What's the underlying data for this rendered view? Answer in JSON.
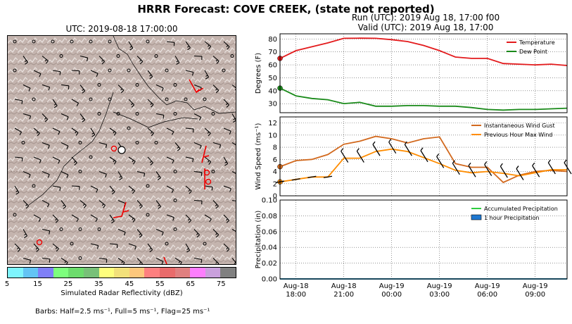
{
  "figure": {
    "title": "HRRR Forecast: COVE CREEK, (state not reported)",
    "run": "Run (UTC): 2019 Aug 18, 17:00 f00",
    "valid": "Valid (UTC): 2019 Aug 18, 17:00"
  },
  "map": {
    "title": "UTC: 2019-08-18 17:00:00",
    "colorbar_label": "Simulated Radar Reflectivity (dBZ)",
    "colorbar_ticks": [
      "5",
      "15",
      "25",
      "35",
      "45",
      "55",
      "65",
      "75"
    ],
    "colorbar_colors": [
      "#7ef4fd",
      "#63c4f4",
      "#7f7ff7",
      "#7dfe7d",
      "#6cdc6c",
      "#78c078",
      "#fefe7d",
      "#f2e07a",
      "#fdc77c",
      "#fd7f7f",
      "#e96b6b",
      "#e08080",
      "#fd7efd",
      "#c9a0dc",
      "#808080"
    ],
    "barbs_note": "Barbs: Half=2.5 ms⁻¹, Full=5 ms⁻¹, Flag=25 ms⁻¹",
    "terrain_color": "#c2b2ac"
  },
  "chart_data": [
    {
      "type": "line",
      "ylabel": "Degrees (F)",
      "ylim": [
        23,
        84
      ],
      "yticks": [
        30,
        40,
        50,
        60,
        70,
        80
      ],
      "grid": true,
      "legend_position": "top-right",
      "x_hours": [
        0,
        1,
        2,
        3,
        4,
        5,
        6,
        7,
        8,
        9,
        10,
        11,
        12,
        13,
        14,
        15,
        16,
        17,
        18
      ],
      "series": [
        {
          "name": "Temperature",
          "color": "#e31a1c",
          "values": [
            65,
            71,
            74,
            77,
            80.5,
            80.6,
            80.5,
            79.5,
            78,
            75,
            71,
            66,
            65,
            65,
            61,
            60.5,
            60,
            60.5,
            59.5
          ]
        },
        {
          "name": "Dew Point",
          "color": "#1a8a1a",
          "values": [
            42,
            36,
            34,
            33,
            30,
            31,
            28,
            28,
            28.5,
            28.5,
            28,
            28,
            27,
            25.5,
            25,
            25.5,
            25.5,
            26,
            26.5
          ]
        }
      ]
    },
    {
      "type": "line",
      "ylabel": "Wind Speed (ms⁻¹)",
      "ylim": [
        0,
        13
      ],
      "yticks": [
        0,
        2,
        4,
        6,
        8,
        10,
        12
      ],
      "grid": true,
      "legend_position": "top-right",
      "x_hours": [
        0,
        1,
        2,
        3,
        4,
        5,
        6,
        7,
        8,
        9,
        10,
        11,
        12,
        13,
        14,
        15,
        16,
        17,
        18
      ],
      "series": [
        {
          "name": "Instantaneous Wind Gust",
          "color": "#d2691e",
          "values": [
            4.8,
            5.8,
            6.0,
            6.8,
            8.5,
            9.0,
            9.8,
            9.4,
            8.7,
            9.4,
            9.7,
            5.3,
            4.7,
            4.7,
            2.2,
            3.4,
            4.0,
            4.2,
            4.0
          ]
        },
        {
          "name": "Previous Hour Max Wind",
          "color": "#ff8c00",
          "values": [
            2.3,
            2.7,
            3.1,
            3.1,
            6.2,
            6.2,
            7.3,
            7.7,
            7.3,
            6.3,
            5.3,
            4.2,
            3.8,
            4.0,
            3.7,
            3.3,
            3.8,
            4.3,
            4.3
          ]
        }
      ]
    },
    {
      "type": "line",
      "ylabel": "Precipitation (in)",
      "ylim": [
        0,
        0.1
      ],
      "yticks": [
        "0.00",
        "0.02",
        "0.04",
        "0.06",
        "0.08",
        "0.10"
      ],
      "grid": true,
      "legend_position": "top-right",
      "x_hours": [
        0,
        1,
        2,
        3,
        4,
        5,
        6,
        7,
        8,
        9,
        10,
        11,
        12,
        13,
        14,
        15,
        16,
        17,
        18
      ],
      "series": [
        {
          "name": "Accumulated Precipitation",
          "color": "#2ecc40",
          "values": [
            0,
            0,
            0,
            0,
            0,
            0,
            0,
            0,
            0,
            0,
            0,
            0,
            0,
            0,
            0,
            0,
            0,
            0,
            0
          ]
        },
        {
          "name": "1 hour Precipitation",
          "color": "#1f78d1",
          "values": [
            0,
            0,
            0,
            0,
            0,
            0,
            0,
            0,
            0,
            0,
            0,
            0,
            0,
            0,
            0,
            0,
            0,
            0,
            0
          ]
        }
      ]
    }
  ],
  "x_ticks": [
    {
      "hour": 1,
      "line1": "Aug-18",
      "line2": "18:00"
    },
    {
      "hour": 4,
      "line1": "Aug-18",
      "line2": "21:00"
    },
    {
      "hour": 7,
      "line1": "Aug-19",
      "line2": "00:00"
    },
    {
      "hour": 10,
      "line1": "Aug-19",
      "line2": "03:00"
    },
    {
      "hour": 13,
      "line1": "Aug-19",
      "line2": "06:00"
    },
    {
      "hour": 16,
      "line1": "Aug-19",
      "line2": "09:00"
    }
  ]
}
